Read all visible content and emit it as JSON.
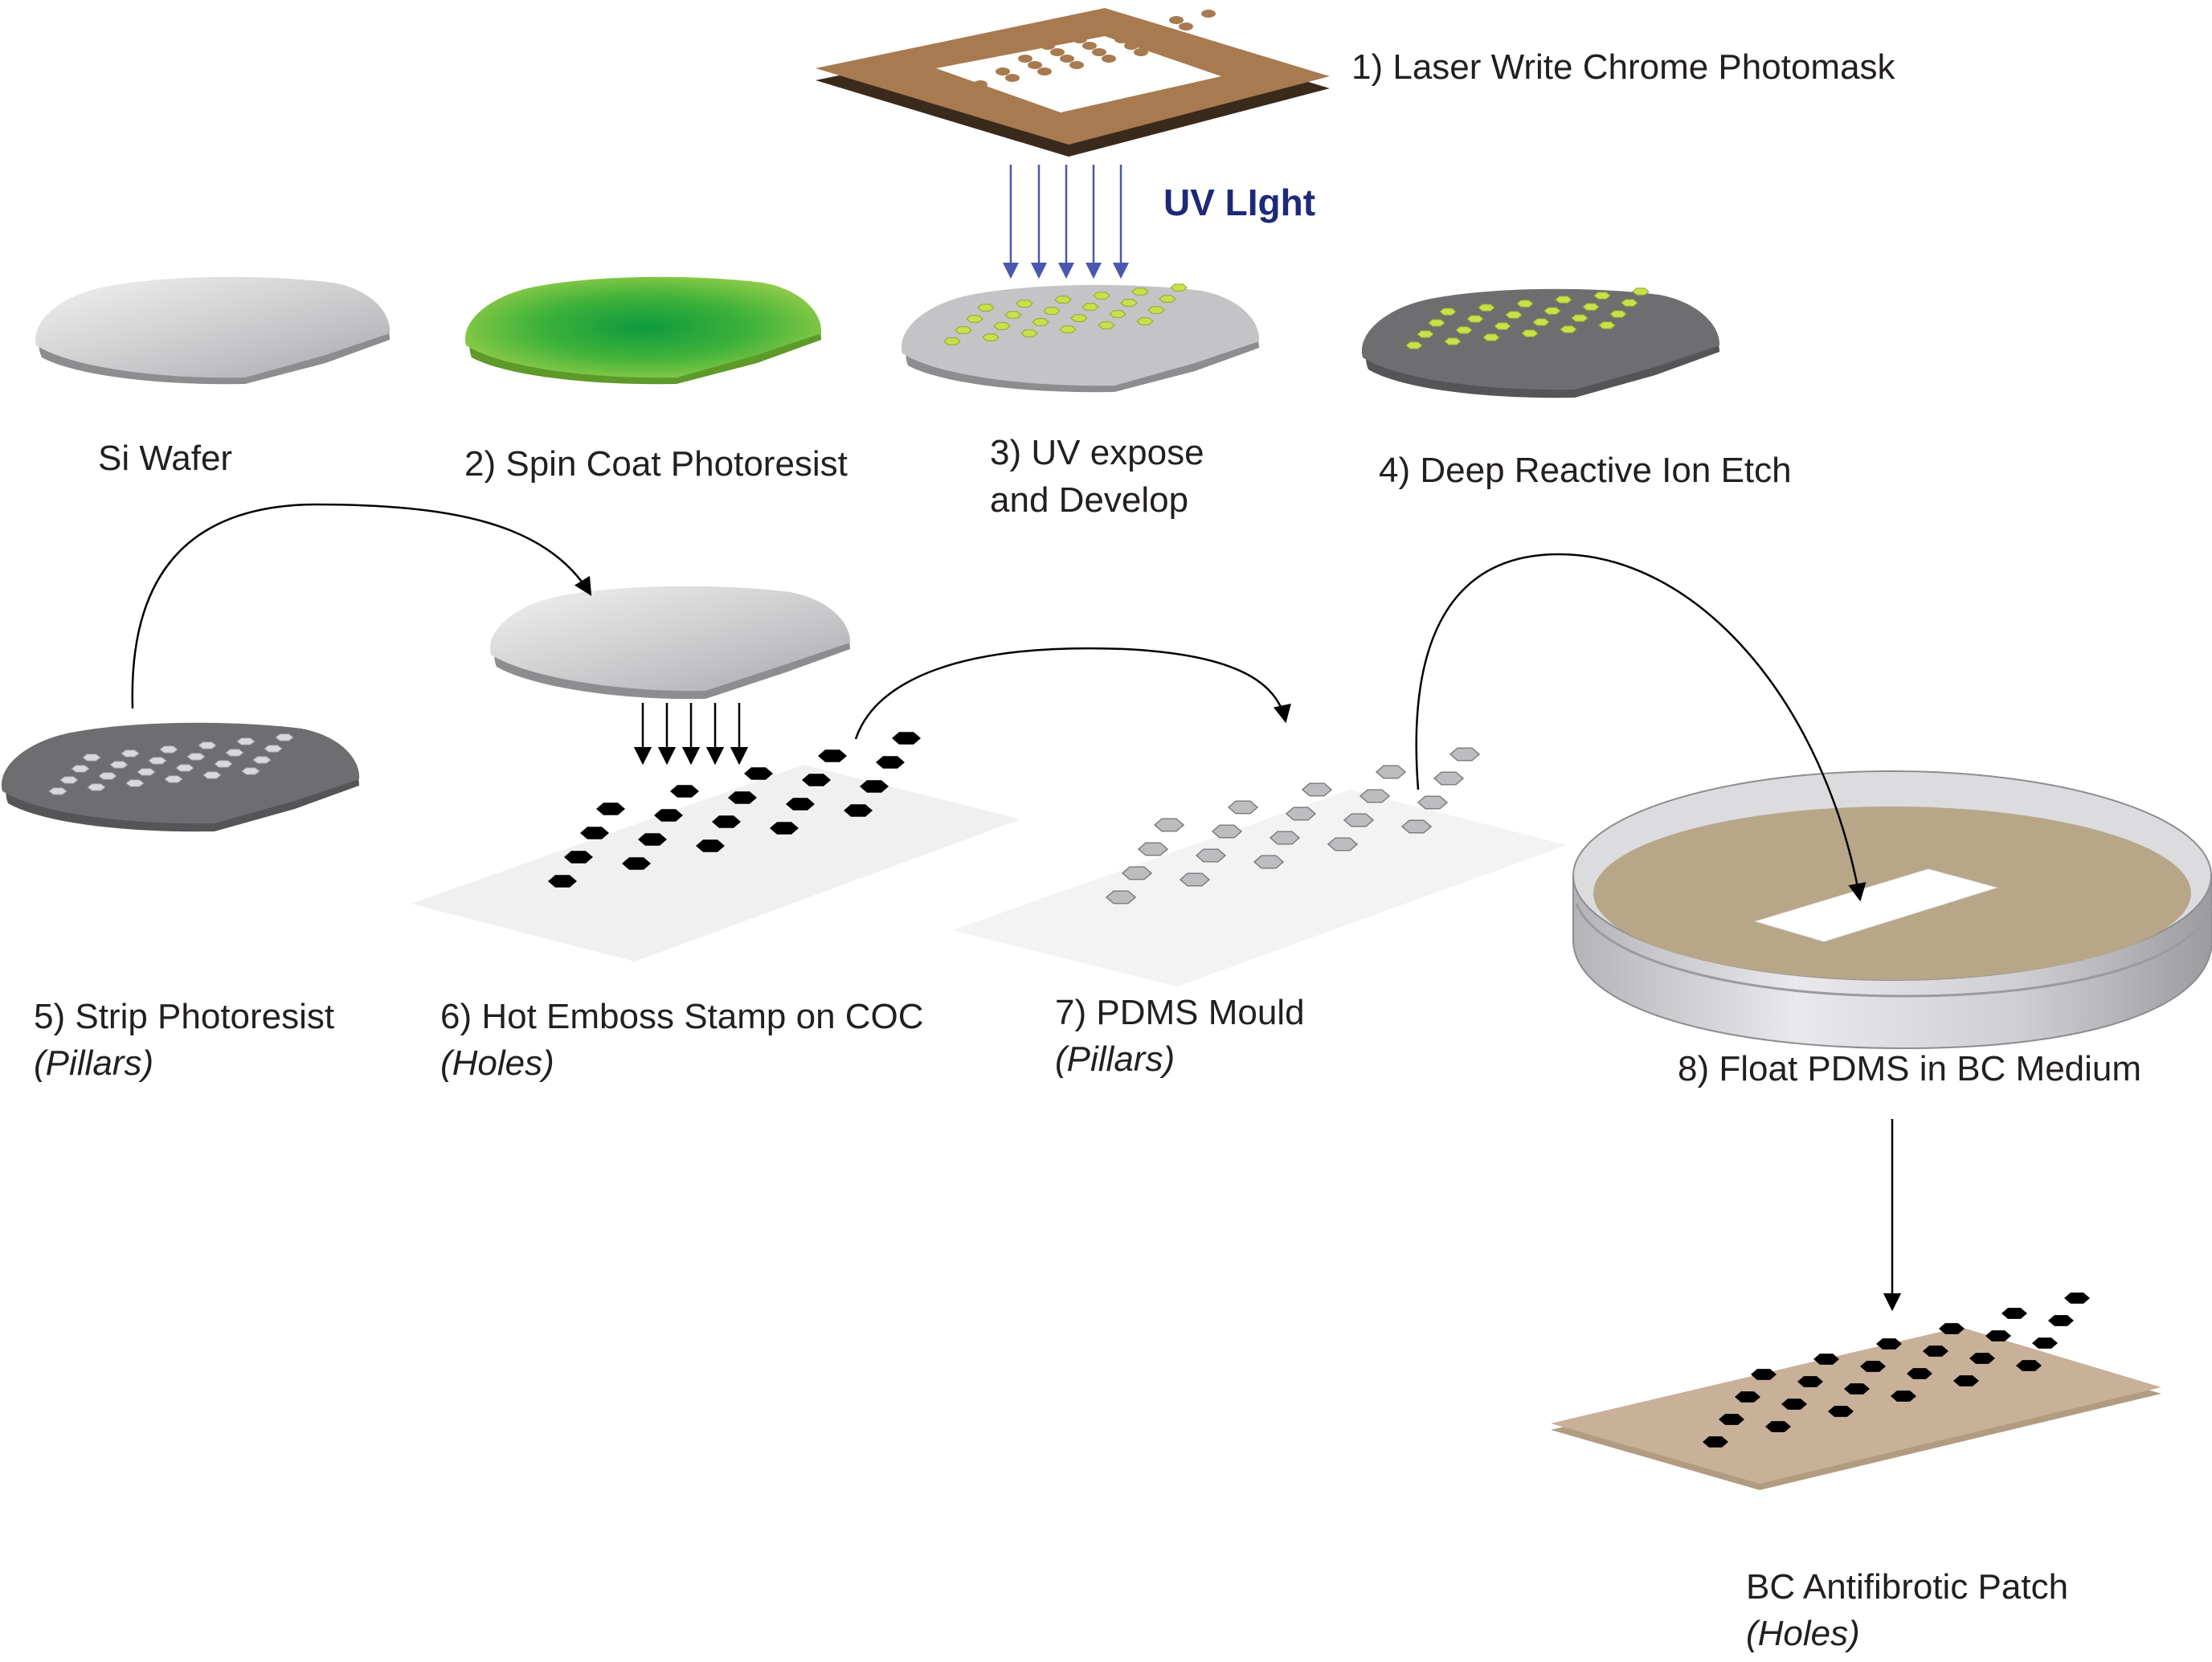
{
  "labels": {
    "step1": "1) Laser Write Chrome Photomask",
    "uv_light": "UV LIght",
    "si_wafer": "Si Wafer",
    "step2": "2) Spin Coat Photoresist",
    "step3_line1": "3) UV expose",
    "step3_line2": "and Develop",
    "step4": "4) Deep Reactive Ion Etch",
    "step5": "5) Strip Photoresist",
    "step5_sub": "(Pillars)",
    "step6": "6) Hot Emboss Stamp on COC",
    "step6_sub": "(Holes)",
    "step7": "7) PDMS Mould",
    "step7_sub": "(Pillars)",
    "step8": "8) Float PDMS in BC Medium",
    "final": "BC Antifibrotic Patch",
    "final_sub": "(Holes)"
  },
  "colors": {
    "mask_frame": "#a87a4f",
    "wafer_gray": "#c9c9cb",
    "photoresist_green": "#3fb23a",
    "uv_arrow": "#4a57b0",
    "etched_wafer": "#6e6e71",
    "feature_green": "#c8e04a",
    "coc_sheet": "#f4f4f4",
    "hole_black": "#000000",
    "pillar_gray": "#bdbdbf",
    "bc_medium": "#b8a688",
    "bc_patch": "#c8b099"
  }
}
